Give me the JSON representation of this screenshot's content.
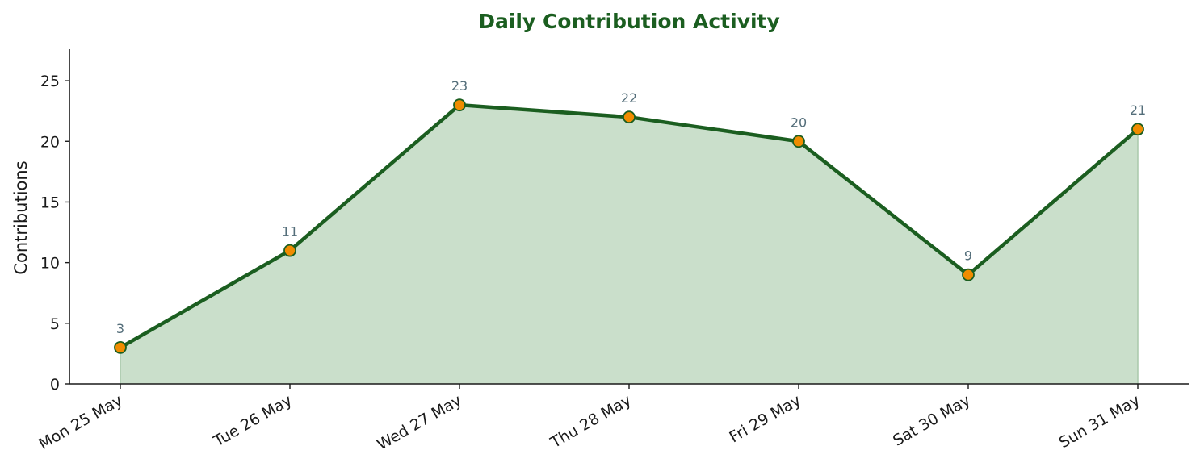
{
  "chart_data": {
    "type": "area",
    "title": "Daily Contribution Activity",
    "xlabel": "",
    "ylabel": "Contributions",
    "categories": [
      "Mon 25 May",
      "Tue 26 May",
      "Wed 27 May",
      "Thu 28 May",
      "Fri 29 May",
      "Sat 30 May",
      "Sun 31 May"
    ],
    "series": [
      {
        "values": [
          3,
          11,
          23,
          22,
          20,
          9,
          21
        ]
      }
    ],
    "ylim": [
      0,
      27.6
    ],
    "yticks": [
      0,
      5,
      10,
      15,
      20,
      25
    ],
    "grid": false,
    "legend": "none",
    "data_labels": true,
    "colors": {
      "title": "#1b5e20",
      "line": "#1b5e20",
      "fill": "#cadfcb",
      "marker_fill": "#f08c00",
      "marker_edge": "#1b5e20",
      "data_label": "#546e7a",
      "axis": "#1a1a1a"
    }
  }
}
